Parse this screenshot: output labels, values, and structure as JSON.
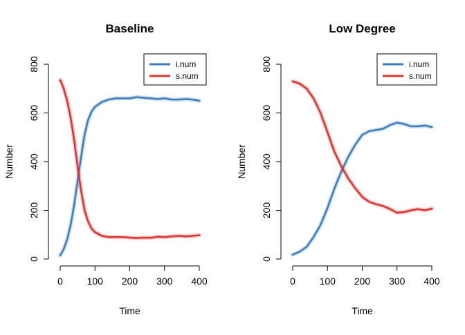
{
  "chart_data": [
    {
      "type": "line",
      "title": "Baseline",
      "xlabel": "Time",
      "ylabel": "Number",
      "xlim": [
        0,
        400
      ],
      "ylim": [
        0,
        800
      ],
      "xticks": [
        "0",
        "100",
        "200",
        "300",
        "400"
      ],
      "yticks": [
        "0",
        "200",
        "400",
        "600",
        "800"
      ],
      "legend_position": "top-right",
      "series": [
        {
          "name": "i.num",
          "color": "#3b7dbd",
          "x": [
            0,
            10,
            20,
            30,
            40,
            50,
            60,
            70,
            80,
            90,
            100,
            120,
            140,
            160,
            180,
            200,
            220,
            240,
            260,
            280,
            300,
            320,
            340,
            360,
            380,
            400
          ],
          "y": [
            15,
            40,
            80,
            140,
            220,
            320,
            420,
            510,
            570,
            605,
            625,
            645,
            655,
            660,
            660,
            660,
            665,
            662,
            660,
            657,
            660,
            655,
            655,
            657,
            655,
            650
          ]
        },
        {
          "name": "s.num",
          "color": "#e03030",
          "x": [
            0,
            10,
            20,
            30,
            40,
            50,
            60,
            70,
            80,
            90,
            100,
            120,
            140,
            160,
            180,
            200,
            220,
            240,
            260,
            280,
            300,
            320,
            340,
            360,
            380,
            400
          ],
          "y": [
            735,
            700,
            650,
            580,
            490,
            380,
            280,
            200,
            155,
            125,
            110,
            95,
            90,
            90,
            90,
            88,
            86,
            88,
            87,
            92,
            90,
            93,
            95,
            93,
            95,
            98
          ]
        }
      ]
    },
    {
      "type": "line",
      "title": "Low Degree",
      "xlabel": "Time",
      "ylabel": "Number",
      "xlim": [
        0,
        400
      ],
      "ylim": [
        0,
        800
      ],
      "xticks": [
        "0",
        "100",
        "200",
        "300",
        "400"
      ],
      "yticks": [
        "0",
        "200",
        "400",
        "600",
        "800"
      ],
      "legend_position": "top-right",
      "series": [
        {
          "name": "i.num",
          "color": "#3b7dbd",
          "x": [
            0,
            20,
            40,
            60,
            80,
            100,
            120,
            140,
            160,
            180,
            200,
            220,
            240,
            260,
            280,
            300,
            320,
            340,
            360,
            380,
            400
          ],
          "y": [
            18,
            30,
            50,
            90,
            140,
            210,
            290,
            360,
            420,
            470,
            510,
            525,
            530,
            535,
            550,
            560,
            555,
            545,
            545,
            548,
            542
          ]
        },
        {
          "name": "s.num",
          "color": "#e03030",
          "x": [
            0,
            20,
            40,
            60,
            80,
            100,
            120,
            140,
            160,
            180,
            200,
            220,
            240,
            260,
            280,
            300,
            320,
            340,
            360,
            380,
            400
          ],
          "y": [
            730,
            720,
            700,
            660,
            600,
            520,
            440,
            380,
            330,
            290,
            255,
            235,
            225,
            218,
            205,
            190,
            193,
            200,
            205,
            200,
            207
          ]
        }
      ]
    }
  ]
}
